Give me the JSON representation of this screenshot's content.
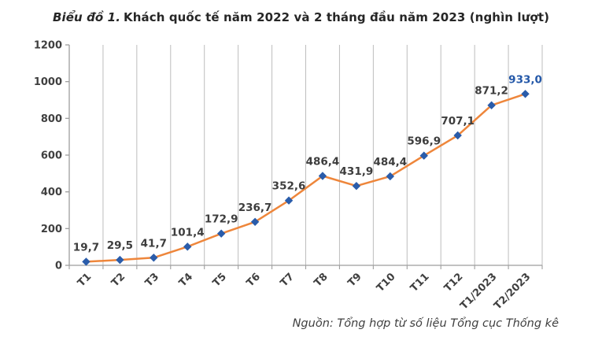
{
  "title": {
    "prefix": "Biểu đồ 1.",
    "text": "Khách quốc tế năm 2022 và 2 tháng đầu năm 2023 (nghìn lượt)"
  },
  "source": "Nguồn: Tổng hợp từ số liệu Tổng cục Thống kê",
  "chart_data": {
    "type": "line",
    "title": "Biểu đồ 1. Khách quốc tế năm 2022 và 2 tháng đầu năm 2023 (nghìn lượt)",
    "categories": [
      "T1",
      "T2",
      "T3",
      "T4",
      "T5",
      "T6",
      "T7",
      "T8",
      "T9",
      "T10",
      "T11",
      "T12",
      "T1/2023",
      "T2/2023"
    ],
    "values": [
      19.7,
      29.5,
      41.7,
      101.4,
      172.9,
      236.7,
      352.6,
      486.4,
      431.9,
      484.4,
      596.9,
      707.1,
      871.2,
      933.0
    ],
    "point_labels": [
      "19,7",
      "29,5",
      "41,7",
      "101,4",
      "172,9",
      "236,7",
      "352,6",
      "486,4",
      "431,9",
      "484,4",
      "596,9",
      "707,1",
      "871,2",
      "933,0"
    ],
    "xlabel": "",
    "ylabel": "",
    "ylim": [
      0,
      1200
    ],
    "ytick_step": 200,
    "yticks": [
      "0",
      "200",
      "400",
      "600",
      "800",
      "1000",
      "1200"
    ],
    "grid": "vertical",
    "legend": "none",
    "colors": {
      "line": "#ee863b",
      "marker": "#2a5caa",
      "data_label": "#3d3d3d",
      "last_data_label": "#2458a8",
      "axis": "#9e9e9e",
      "gridline": "#bdbdbd",
      "tick_label": "#3f3f3f"
    }
  }
}
